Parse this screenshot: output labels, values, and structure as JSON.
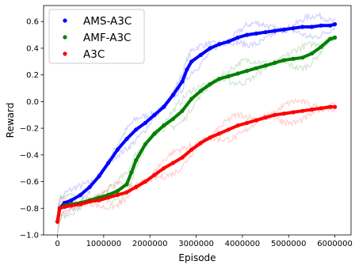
{
  "chart_data": {
    "type": "line",
    "xlabel": "Episode",
    "ylabel": "Reward",
    "xlim": [
      -300000,
      6350000
    ],
    "ylim": [
      -1.0,
      0.72
    ],
    "xticks": [
      0,
      1000000,
      2000000,
      3000000,
      4000000,
      5000000,
      6000000
    ],
    "xtick_labels": [
      "0",
      "1000000",
      "2000000",
      "3000000",
      "4000000",
      "5000000",
      "6000000"
    ],
    "yticks": [
      -1.0,
      -0.8,
      -0.6,
      -0.4,
      -0.2,
      0.0,
      0.2,
      0.4,
      0.6
    ],
    "ytick_labels": [
      "−1.0",
      "−0.8",
      "−0.6",
      "−0.4",
      "−0.2",
      "0.0",
      "0.2",
      "0.4",
      "0.6"
    ],
    "grid": false,
    "legend_position": "top-left",
    "series": [
      {
        "name": "AMS-A3C",
        "color": "#0000ff",
        "x": [
          0,
          50000,
          150000,
          300000,
          500000,
          700000,
          900000,
          1100000,
          1300000,
          1500000,
          1700000,
          1900000,
          2100000,
          2300000,
          2500000,
          2700000,
          2800000,
          2900000,
          3100000,
          3300000,
          3500000,
          3700000,
          3900000,
          4100000,
          4300000,
          4500000,
          4700000,
          4900000,
          5100000,
          5300000,
          5500000,
          5700000,
          5900000,
          6000000
        ],
        "y": [
          -0.9,
          -0.8,
          -0.76,
          -0.74,
          -0.7,
          -0.64,
          -0.56,
          -0.46,
          -0.36,
          -0.28,
          -0.21,
          -0.16,
          -0.1,
          -0.04,
          0.05,
          0.15,
          0.24,
          0.3,
          0.35,
          0.4,
          0.43,
          0.45,
          0.48,
          0.5,
          0.51,
          0.52,
          0.53,
          0.54,
          0.55,
          0.56,
          0.56,
          0.57,
          0.57,
          0.58
        ]
      },
      {
        "name": "AMF-A3C",
        "color": "#008000",
        "x": [
          0,
          50000,
          150000,
          300000,
          500000,
          700000,
          900000,
          1100000,
          1300000,
          1500000,
          1600000,
          1700000,
          1900000,
          2100000,
          2300000,
          2500000,
          2700000,
          2900000,
          3100000,
          3300000,
          3500000,
          3700000,
          3900000,
          4100000,
          4300000,
          4500000,
          4700000,
          4900000,
          5100000,
          5300000,
          5500000,
          5700000,
          5900000,
          6000000
        ],
        "y": [
          -0.9,
          -0.8,
          -0.78,
          -0.77,
          -0.76,
          -0.74,
          -0.72,
          -0.7,
          -0.67,
          -0.62,
          -0.53,
          -0.44,
          -0.32,
          -0.24,
          -0.18,
          -0.13,
          -0.07,
          0.02,
          0.08,
          0.13,
          0.17,
          0.19,
          0.21,
          0.23,
          0.25,
          0.27,
          0.29,
          0.31,
          0.32,
          0.33,
          0.36,
          0.41,
          0.47,
          0.48
        ]
      },
      {
        "name": "A3C",
        "color": "#ff0000",
        "x": [
          0,
          50000,
          150000,
          300000,
          500000,
          700000,
          900000,
          1100000,
          1300000,
          1500000,
          1700000,
          1900000,
          2100000,
          2300000,
          2500000,
          2700000,
          2900000,
          3100000,
          3300000,
          3500000,
          3700000,
          3900000,
          4100000,
          4300000,
          4500000,
          4700000,
          4900000,
          5100000,
          5300000,
          5500000,
          5700000,
          5900000,
          6000000
        ],
        "y": [
          -0.9,
          -0.8,
          -0.79,
          -0.78,
          -0.77,
          -0.75,
          -0.74,
          -0.72,
          -0.7,
          -0.68,
          -0.64,
          -0.6,
          -0.55,
          -0.5,
          -0.46,
          -0.42,
          -0.36,
          -0.31,
          -0.27,
          -0.24,
          -0.21,
          -0.18,
          -0.16,
          -0.14,
          -0.12,
          -0.1,
          -0.09,
          -0.08,
          -0.07,
          -0.06,
          -0.05,
          -0.04,
          -0.04
        ]
      }
    ]
  }
}
